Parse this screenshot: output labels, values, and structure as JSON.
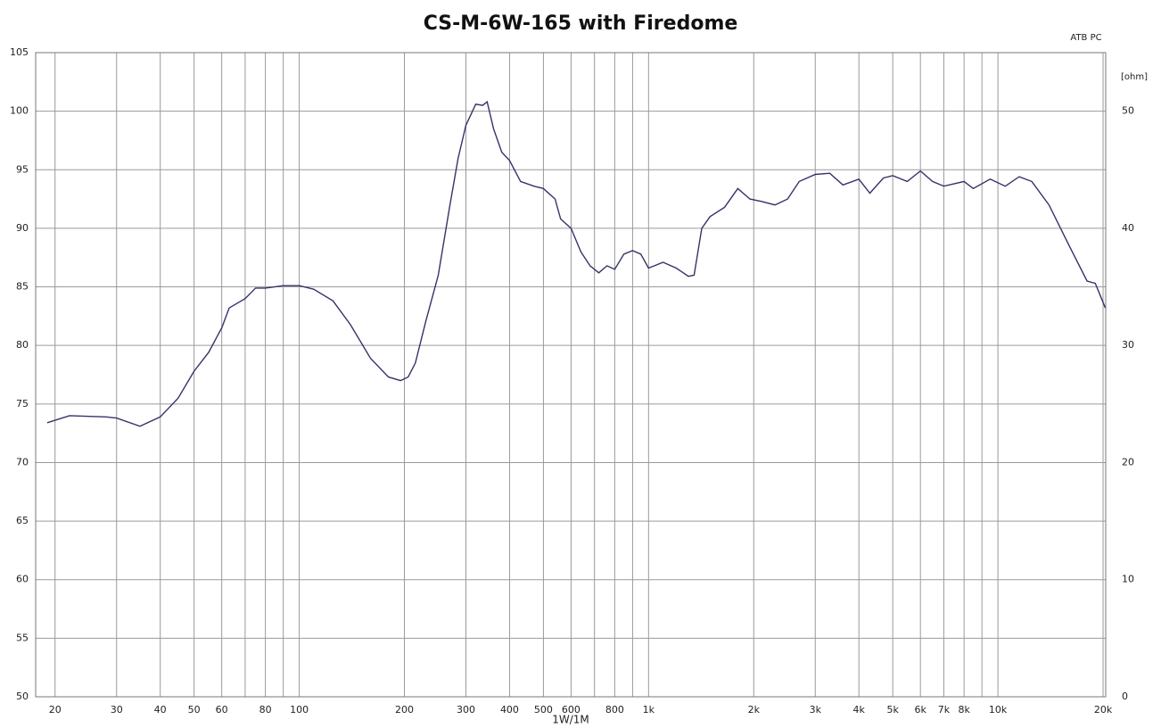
{
  "chart_data": {
    "type": "line",
    "title": "CS-M-6W-165 with Firedome",
    "xlabel": "1W/1M",
    "y2label": "[ohm]",
    "annotation": "ATB PC",
    "xscale": "log",
    "grid": true,
    "color": "#33336b",
    "xlim": [
      17.6,
      20350
    ],
    "ylim": [
      50,
      105
    ],
    "y2lim": [
      0,
      55
    ],
    "xticks": [
      20,
      30,
      40,
      50,
      60,
      80,
      100,
      200,
      300,
      400,
      500,
      600,
      800,
      {
        "value": 1000,
        "label": "1k"
      },
      {
        "value": 2000,
        "label": "2k"
      },
      {
        "value": 3000,
        "label": "3k"
      },
      {
        "value": 4000,
        "label": "4k"
      },
      {
        "value": 5000,
        "label": "5k"
      },
      {
        "value": 6000,
        "label": "6k"
      },
      {
        "value": 7000,
        "label": "7k"
      },
      {
        "value": 8000,
        "label": "8k"
      },
      {
        "value": 10000,
        "label": "10k"
      },
      {
        "value": 20000,
        "label": "20k"
      }
    ],
    "xminor": [
      70,
      90,
      700,
      900,
      9000
    ],
    "yticks": [
      50,
      55,
      60,
      65,
      70,
      75,
      80,
      85,
      90,
      95,
      100,
      105
    ],
    "y2ticks": [
      0,
      10,
      20,
      30,
      40,
      50
    ],
    "x": [
      19,
      22,
      28,
      30,
      35,
      40,
      45,
      50,
      55,
      60,
      63,
      70,
      75,
      80,
      90,
      100,
      110,
      125,
      140,
      160,
      180,
      195,
      205,
      215,
      230,
      250,
      270,
      285,
      300,
      320,
      335,
      345,
      360,
      380,
      400,
      430,
      470,
      500,
      540,
      560,
      600,
      640,
      680,
      720,
      760,
      800,
      850,
      900,
      950,
      1000,
      1100,
      1200,
      1300,
      1350,
      1420,
      1500,
      1650,
      1800,
      1950,
      2100,
      2300,
      2500,
      2700,
      3000,
      3300,
      3600,
      4000,
      4300,
      4700,
      5000,
      5500,
      6000,
      6500,
      7000,
      8000,
      8500,
      9500,
      10500,
      11500,
      12500,
      14000,
      16000,
      18000,
      19000,
      20300
    ],
    "values": [
      73.4,
      74.0,
      73.9,
      73.8,
      73.1,
      73.9,
      75.5,
      77.8,
      79.4,
      81.5,
      83.2,
      84.0,
      84.9,
      84.9,
      85.1,
      85.1,
      84.8,
      83.8,
      81.8,
      78.9,
      77.3,
      77.0,
      77.3,
      78.5,
      82.0,
      86.0,
      92.0,
      96.0,
      98.8,
      100.6,
      100.5,
      100.8,
      98.5,
      96.5,
      95.8,
      94.0,
      93.6,
      93.4,
      92.5,
      90.8,
      90.0,
      88.0,
      86.8,
      86.2,
      86.8,
      86.5,
      87.8,
      88.1,
      87.8,
      86.6,
      87.1,
      86.6,
      85.9,
      86.0,
      90.0,
      91.0,
      91.8,
      93.4,
      92.5,
      92.3,
      92.0,
      92.5,
      94.0,
      94.6,
      94.7,
      93.7,
      94.2,
      93.0,
      94.3,
      94.5,
      94.0,
      94.9,
      94.0,
      93.6,
      94.0,
      93.4,
      94.2,
      93.6,
      94.4,
      94.0,
      92.0,
      88.5,
      85.5,
      85.3,
      83.2
    ]
  }
}
